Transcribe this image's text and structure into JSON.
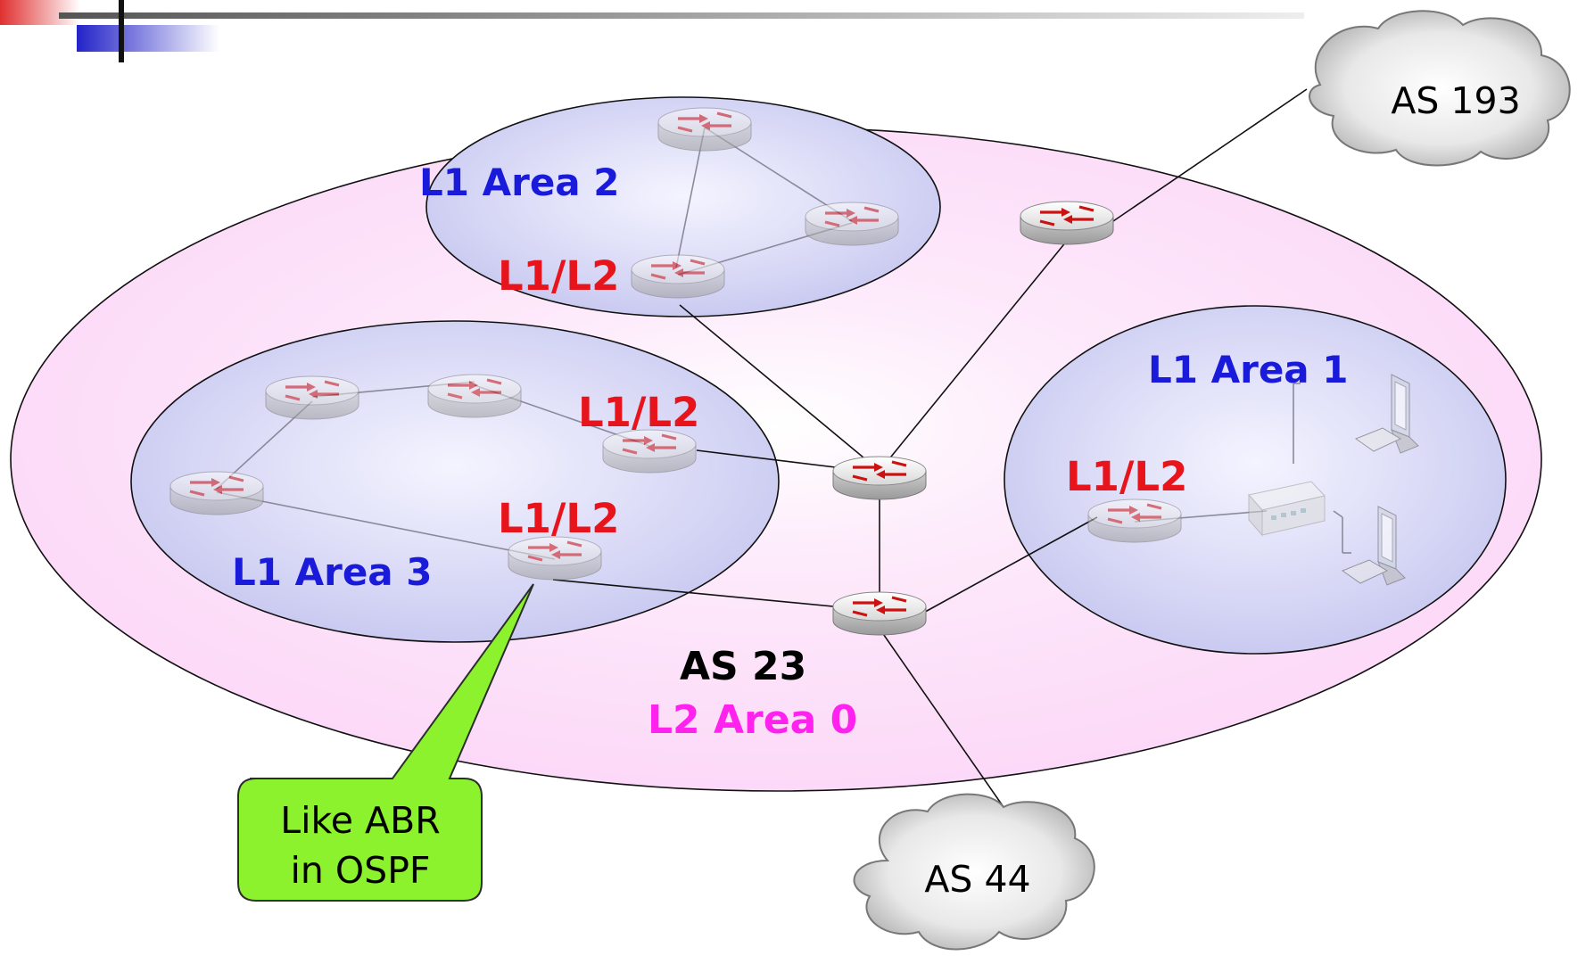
{
  "labels": {
    "l1_area_2": "L1 Area 2",
    "l1_area_1": "L1 Area 1",
    "l1_area_3": "L1 Area 3",
    "l1l2_area2": "L1/L2",
    "l1l2_area3_top": "L1/L2",
    "l1l2_area3_bottom": "L1/L2",
    "l1l2_area1": "L1/L2",
    "as_main": "AS 23",
    "l2_area": "L2 Area 0"
  },
  "clouds": {
    "as193": "AS 193",
    "as44": "AS 44"
  },
  "callout": {
    "line1": "Like ABR",
    "line2": "in OSPF"
  },
  "colors": {
    "area_label": "#1a1adb",
    "l1l2_label": "#e8141c",
    "l2_label": "#ff22ee",
    "outer_area_fill": "#fcd9f8",
    "inner_area_fill": "#cfcff4",
    "callout_fill": "#8cf22e"
  },
  "icons": {
    "router": "router-icon",
    "switch": "switch-icon",
    "computer": "computer-icon",
    "cloud": "cloud-shape"
  }
}
